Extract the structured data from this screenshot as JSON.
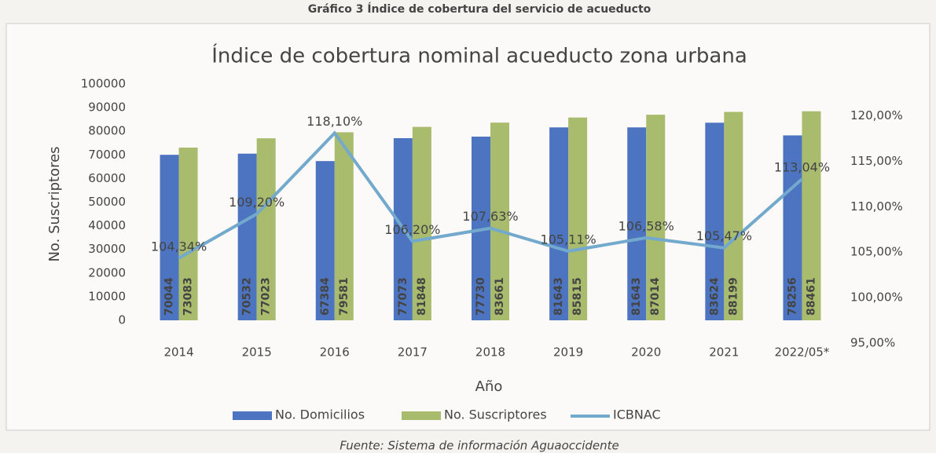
{
  "chart_data": {
    "type": "bar",
    "caption": "Gráfico 3 Índice de cobertura del servicio de acueducto",
    "title": "Índice de cobertura nominal acueducto zona urbana",
    "xlabel": "Año",
    "ylabel": "No. Suscriptores",
    "source": "Fuente: Sistema de información Aguaoccidente",
    "categories": [
      "2014",
      "2015",
      "2016",
      "2017",
      "2018",
      "2019",
      "2020",
      "2021",
      "2022/05*"
    ],
    "series": [
      {
        "name": "No. Domicilios",
        "color": "#4d74c0",
        "values": [
          70044,
          70532,
          67384,
          77073,
          77730,
          81643,
          81643,
          83624,
          78256
        ]
      },
      {
        "name": "No. Suscriptores",
        "color": "#a9bb6c",
        "values": [
          73083,
          77023,
          79581,
          81848,
          83661,
          85815,
          87014,
          88199,
          88461
        ]
      },
      {
        "name": "ICBNAC",
        "color": "#72a9cc",
        "type": "line",
        "axis": "y2",
        "values": [
          104.34,
          109.2,
          118.1,
          106.2,
          107.63,
          105.11,
          106.58,
          105.47,
          113.04
        ],
        "value_labels": [
          "104,34%",
          "109,20%",
          "118,10%",
          "106,20%",
          "107,63%",
          "105,11%",
          "106,58%",
          "105,47%",
          "113,04%"
        ]
      }
    ],
    "ylim": [
      0,
      100000
    ],
    "yticks": [
      0,
      10000,
      20000,
      30000,
      40000,
      50000,
      60000,
      70000,
      80000,
      90000,
      100000
    ],
    "y2lim": [
      97.5,
      123.5
    ],
    "y2ticks": [
      {
        "value": 95,
        "label": "95,00%"
      },
      {
        "value": 100,
        "label": "100,00%"
      },
      {
        "value": 105,
        "label": "105,00%"
      },
      {
        "value": 110,
        "label": "110,00%"
      },
      {
        "value": 115,
        "label": "115,00%"
      },
      {
        "value": 120,
        "label": "120,00%"
      }
    ],
    "legend": "bottom"
  }
}
